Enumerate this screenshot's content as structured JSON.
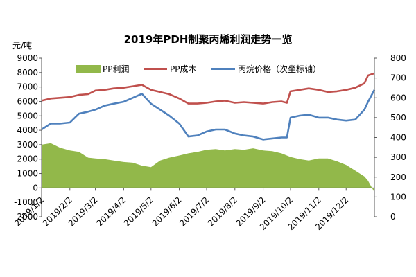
{
  "chart_data": {
    "type": "area",
    "title": "2019年PDH制聚丙烯利润走势一览",
    "y_left_label": "元/吨",
    "y_left_range": [
      -2000,
      9000
    ],
    "y_left_ticks": [
      "-2000",
      "-1000",
      "0",
      "1000",
      "2000",
      "3000",
      "4000",
      "5000",
      "6000",
      "7000",
      "8000",
      "9000"
    ],
    "y_right_range": [
      0,
      800
    ],
    "y_right_ticks": [
      "0",
      "100",
      "200",
      "300",
      "400",
      "500",
      "600",
      "700",
      "800"
    ],
    "x_tick_labels": [
      "2019/1/2",
      "2019/2/2",
      "2019/3/2",
      "2019/4/2",
      "2019/5/2",
      "2019/6/2",
      "2019/7/2",
      "2019/8/2",
      "2019/9/2",
      "2019/10/2",
      "2019/11/2",
      "2019/12/2"
    ],
    "x_range": [
      "2019-01-02",
      "2020-01-02"
    ],
    "grid": false,
    "legend_position": "top",
    "series": [
      {
        "name": "PP利润",
        "axis": "left",
        "kind": "area",
        "color": "#92b84a",
        "x": [
          "2019-01-02",
          "2019-01-12",
          "2019-01-22",
          "2019-02-02",
          "2019-02-12",
          "2019-02-22",
          "2019-03-02",
          "2019-03-12",
          "2019-03-22",
          "2019-04-02",
          "2019-04-12",
          "2019-04-22",
          "2019-05-02",
          "2019-05-12",
          "2019-05-22",
          "2019-06-02",
          "2019-06-12",
          "2019-06-22",
          "2019-07-02",
          "2019-07-12",
          "2019-07-22",
          "2019-08-02",
          "2019-08-12",
          "2019-08-22",
          "2019-09-02",
          "2019-09-12",
          "2019-09-22",
          "2019-10-02",
          "2019-10-12",
          "2019-10-22",
          "2019-11-02",
          "2019-11-12",
          "2019-11-22",
          "2019-12-02",
          "2019-12-12",
          "2019-12-22",
          "2019-12-26",
          "2020-01-02"
        ],
        "values": [
          3000,
          3100,
          2800,
          2600,
          2500,
          2100,
          2050,
          2000,
          1900,
          1800,
          1750,
          1550,
          1450,
          1900,
          2100,
          2250,
          2400,
          2500,
          2650,
          2700,
          2600,
          2700,
          2650,
          2750,
          2600,
          2550,
          2400,
          2150,
          2000,
          1900,
          2050,
          2050,
          1850,
          1600,
          1200,
          800,
          500,
          -300
        ]
      },
      {
        "name": "PP成本",
        "axis": "left",
        "kind": "line",
        "color": "#c0504d",
        "x": [
          "2019-01-02",
          "2019-01-12",
          "2019-01-22",
          "2019-02-02",
          "2019-02-12",
          "2019-02-22",
          "2019-03-02",
          "2019-03-12",
          "2019-03-22",
          "2019-04-02",
          "2019-04-12",
          "2019-04-22",
          "2019-05-02",
          "2019-05-12",
          "2019-05-22",
          "2019-06-02",
          "2019-06-12",
          "2019-06-22",
          "2019-07-02",
          "2019-07-12",
          "2019-07-22",
          "2019-08-02",
          "2019-08-12",
          "2019-08-22",
          "2019-09-02",
          "2019-09-12",
          "2019-09-22",
          "2019-09-28",
          "2019-10-02",
          "2019-10-12",
          "2019-10-22",
          "2019-11-02",
          "2019-11-12",
          "2019-11-22",
          "2019-12-02",
          "2019-12-12",
          "2019-12-22",
          "2019-12-26",
          "2020-01-02"
        ],
        "values": [
          6050,
          6200,
          6250,
          6300,
          6450,
          6500,
          6750,
          6800,
          6900,
          6950,
          7050,
          7150,
          6800,
          6650,
          6500,
          6200,
          5850,
          5850,
          5900,
          6000,
          6050,
          5900,
          5950,
          5900,
          5850,
          5950,
          6000,
          5900,
          6700,
          6800,
          6900,
          6800,
          6650,
          6700,
          6800,
          6950,
          7250,
          7800,
          7950
        ]
      },
      {
        "name": "丙烷价格（次坐标轴）",
        "axis": "right",
        "kind": "line",
        "color": "#4f81bd",
        "x": [
          "2019-01-02",
          "2019-01-12",
          "2019-01-22",
          "2019-02-02",
          "2019-02-12",
          "2019-02-22",
          "2019-03-02",
          "2019-03-12",
          "2019-03-22",
          "2019-04-02",
          "2019-04-12",
          "2019-04-22",
          "2019-05-02",
          "2019-05-12",
          "2019-05-22",
          "2019-06-02",
          "2019-06-12",
          "2019-06-22",
          "2019-07-02",
          "2019-07-12",
          "2019-07-22",
          "2019-08-02",
          "2019-08-12",
          "2019-08-22",
          "2019-09-02",
          "2019-09-12",
          "2019-09-22",
          "2019-09-28",
          "2019-10-02",
          "2019-10-12",
          "2019-10-22",
          "2019-11-02",
          "2019-11-12",
          "2019-11-22",
          "2019-12-02",
          "2019-12-12",
          "2019-12-22",
          "2019-12-26",
          "2020-01-02"
        ],
        "values": [
          440,
          470,
          470,
          475,
          520,
          530,
          540,
          560,
          570,
          580,
          600,
          620,
          570,
          540,
          510,
          470,
          405,
          410,
          430,
          440,
          440,
          420,
          410,
          405,
          390,
          395,
          400,
          400,
          500,
          510,
          515,
          500,
          500,
          490,
          485,
          490,
          540,
          580,
          640
        ]
      }
    ]
  }
}
